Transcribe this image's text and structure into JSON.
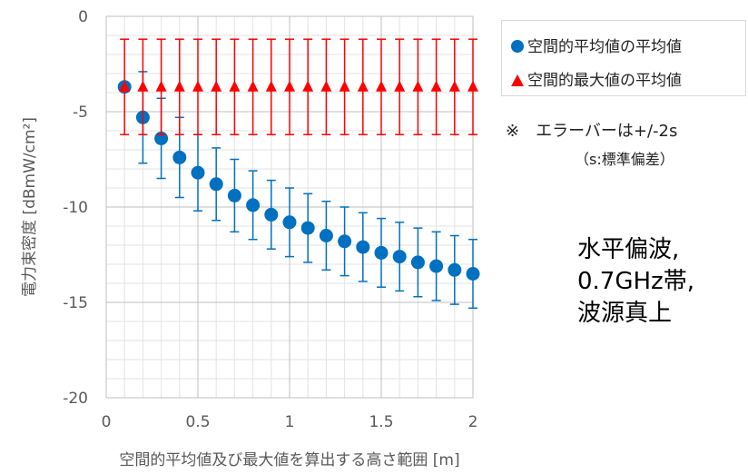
{
  "chart_data": {
    "type": "scatter",
    "xlabel": "空間的平均値及び最大値を算出する高さ範囲 [m]",
    "ylabel": "電力束密度 [dBmW/cm²]",
    "xlim": [
      0,
      2
    ],
    "ylim": [
      -20,
      0
    ],
    "x_ticks": [
      "0",
      "0.5",
      "1",
      "1.5",
      "2"
    ],
    "y_ticks": [
      "0",
      "-5",
      "-10",
      "-15",
      "-20"
    ],
    "x_tick_values": [
      0,
      0.5,
      1,
      1.5,
      2
    ],
    "y_tick_values": [
      0,
      -5,
      -10,
      -15,
      -20
    ],
    "grid": true,
    "legend_position": "top-right",
    "series": [
      {
        "name": "空間的平均値の平均値",
        "marker": "circle",
        "color": "#0070c0",
        "x": [
          0.1,
          0.2,
          0.3,
          0.4,
          0.5,
          0.6,
          0.7,
          0.8,
          0.9,
          1.0,
          1.1,
          1.2,
          1.3,
          1.4,
          1.5,
          1.6,
          1.7,
          1.8,
          1.9,
          2.0
        ],
        "y": [
          -3.7,
          -5.3,
          -6.4,
          -7.4,
          -8.2,
          -8.8,
          -9.4,
          -9.9,
          -10.4,
          -10.8,
          -11.1,
          -11.5,
          -11.8,
          -12.1,
          -12.4,
          -12.6,
          -12.9,
          -13.1,
          -13.3,
          -13.5
        ],
        "error": [
          0,
          2.4,
          2.1,
          2.1,
          2.0,
          1.9,
          1.9,
          1.8,
          1.8,
          1.8,
          1.8,
          1.8,
          1.8,
          1.8,
          1.8,
          1.8,
          1.8,
          1.8,
          1.8,
          1.8
        ]
      },
      {
        "name": "空間的最大値の平均値",
        "marker": "triangle",
        "color": "#ff0000",
        "x": [
          0.1,
          0.2,
          0.3,
          0.4,
          0.5,
          0.6,
          0.7,
          0.8,
          0.9,
          1.0,
          1.1,
          1.2,
          1.3,
          1.4,
          1.5,
          1.6,
          1.7,
          1.8,
          1.9,
          2.0
        ],
        "y": [
          -3.7,
          -3.7,
          -3.7,
          -3.7,
          -3.7,
          -3.7,
          -3.7,
          -3.7,
          -3.7,
          -3.7,
          -3.7,
          -3.7,
          -3.7,
          -3.7,
          -3.7,
          -3.7,
          -3.7,
          -3.7,
          -3.7,
          -3.7
        ],
        "error": [
          2.5,
          2.5,
          2.5,
          2.5,
          2.5,
          2.5,
          2.5,
          2.5,
          2.5,
          2.5,
          2.5,
          2.5,
          2.5,
          2.5,
          2.5,
          2.5,
          2.5,
          2.5,
          2.5,
          2.5
        ]
      }
    ],
    "annotations": [
      "※　エラーバーは+/-2s",
      "（s:標準偏差）",
      "水平偏波,",
      "0.7GHz帯,",
      "波源真上"
    ]
  }
}
